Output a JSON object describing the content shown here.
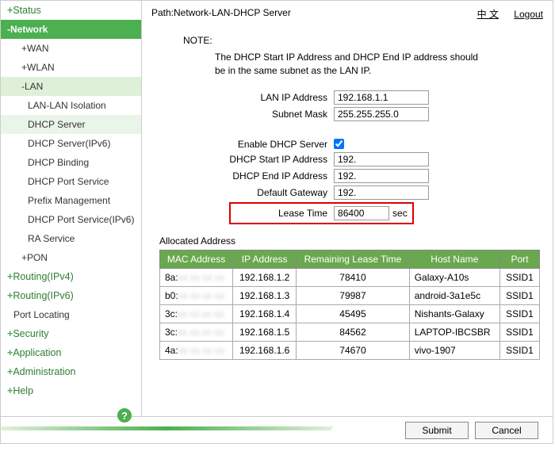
{
  "sidebar": {
    "status": "Status",
    "network": "Network",
    "wan": "WAN",
    "wlan": "WLAN",
    "lan": "LAN",
    "lan_lan_iso": "LAN-LAN Isolation",
    "dhcp_server": "DHCP Server",
    "dhcp_server_ipv6": "DHCP Server(IPv6)",
    "dhcp_binding": "DHCP Binding",
    "dhcp_port_service": "DHCP Port Service",
    "prefix_mgmt": "Prefix Management",
    "dhcp_port_service_ipv6": "DHCP Port Service(IPv6)",
    "ra_service": "RA Service",
    "pon": "PON",
    "routing_ipv4": "Routing(IPv4)",
    "routing_ipv6": "Routing(IPv6)",
    "port_locating": "Port Locating",
    "security": "Security",
    "application": "Application",
    "administration": "Administration",
    "help": "Help"
  },
  "path": "Path:Network-LAN-DHCP Server",
  "lang_link": "中 文",
  "logout": "Logout",
  "note_title": "NOTE:",
  "note_body": "The DHCP Start IP Address and DHCP End IP address should be in the same subnet as the LAN IP.",
  "labels": {
    "lan_ip": "LAN IP Address",
    "subnet": "Subnet Mask",
    "enable": "Enable DHCP Server",
    "start_ip": "DHCP Start IP Address",
    "end_ip": "DHCP End IP Address",
    "gateway": "Default Gateway",
    "lease": "Lease Time",
    "lease_unit": "sec"
  },
  "values": {
    "lan_ip": "192.168.1.1",
    "subnet": "255.255.255.0",
    "start_ip": "192.",
    "end_ip": "192.",
    "gateway": "192.",
    "lease": "86400"
  },
  "alloc_title": "Allocated Address",
  "alloc_headers": [
    "MAC Address",
    "IP Address",
    "Remaining Lease Time",
    "Host Name",
    "Port"
  ],
  "alloc_rows": [
    {
      "mac": "8a:",
      "ip": "192.168.1.2",
      "lease": "78410",
      "host": "Galaxy-A10s",
      "port": "SSID1"
    },
    {
      "mac": "b0:",
      "ip": "192.168.1.3",
      "lease": "79987",
      "host": "android-3a1e5c",
      "port": "SSID1"
    },
    {
      "mac": "3c:",
      "ip": "192.168.1.4",
      "lease": "45495",
      "host": "Nishants-Galaxy",
      "port": "SSID1"
    },
    {
      "mac": "3c:",
      "ip": "192.168.1.5",
      "lease": "84562",
      "host": "LAPTOP-IBCSBR",
      "port": "SSID1"
    },
    {
      "mac": "4a:",
      "ip": "192.168.1.6",
      "lease": "74670",
      "host": "vivo-1907",
      "port": "SSID1"
    }
  ],
  "buttons": {
    "submit": "Submit",
    "cancel": "Cancel"
  }
}
